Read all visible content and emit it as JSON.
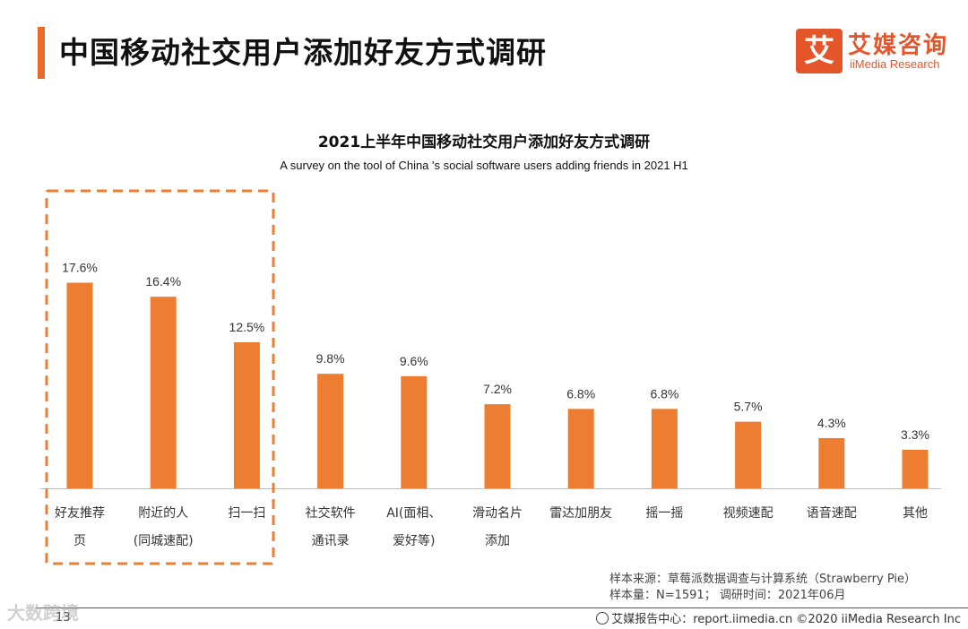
{
  "header": {
    "title": "中国移动社交用户添加好友方式调研",
    "logo_char": "艾",
    "logo_cn": "艾媒咨询",
    "logo_en": "iiMedia Research"
  },
  "chart_data": {
    "type": "bar",
    "title": "2021上半年中国移动社交用户添加好友方式调研",
    "subtitle": "A survey on the tool of China 's social software users adding friends in 2021 H1",
    "categories": [
      [
        "好友推荐",
        "页"
      ],
      [
        "附近的人",
        "(同城速配)"
      ],
      [
        "扫一扫"
      ],
      [
        "社交软件",
        "通讯录"
      ],
      [
        "AI(面相、",
        "爱好等)"
      ],
      [
        "滑动名片",
        "添加"
      ],
      [
        "雷达加朋友"
      ],
      [
        "摇一摇"
      ],
      [
        "视频速配"
      ],
      [
        "语音速配"
      ],
      [
        "其他"
      ]
    ],
    "values": [
      17.6,
      16.4,
      12.5,
      9.8,
      9.6,
      7.2,
      6.8,
      6.8,
      5.7,
      4.3,
      3.3
    ],
    "labels": [
      "17.6%",
      "16.4%",
      "12.5%",
      "9.8%",
      "9.6%",
      "7.2%",
      "6.8%",
      "6.8%",
      "5.7%",
      "4.3%",
      "3.3%"
    ],
    "unit": "%",
    "ylim": [
      0,
      20
    ],
    "highlight_count": 3,
    "bar_color": "#ed7d31",
    "highlight_color": "#ed7d31"
  },
  "source": {
    "line1": "样本来源：草莓派数据调查与计算系统（Strawberry Pie）",
    "line2": "样本量：N=1591； 调研时间：2021年06月"
  },
  "footer": {
    "text": "艾媒报告中心：report.iimedia.cn  ©2020  iiMedia Research  Inc",
    "page": "13",
    "watermark": "大数跨境"
  }
}
